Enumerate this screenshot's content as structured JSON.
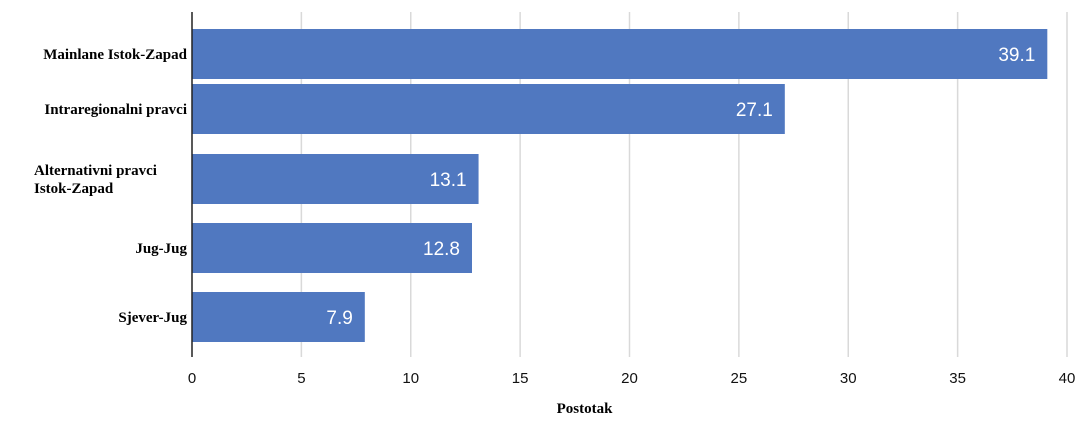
{
  "chart_data": {
    "type": "bar",
    "orientation": "horizontal",
    "categories": [
      [
        "Mainlane Istok-Zapad"
      ],
      [
        "Intraregionalni pravci"
      ],
      [
        "Alternativni pravci",
        "Istok-Zapad"
      ],
      [
        "Jug-Jug"
      ],
      [
        "Sjever-Jug"
      ]
    ],
    "values": [
      39.1,
      27.1,
      13.1,
      12.8,
      7.9
    ],
    "value_labels": [
      "39.1",
      "27.1",
      "13.1",
      "12.8",
      "7.9"
    ],
    "xlabel": "Postotak",
    "xlim": [
      0,
      40
    ],
    "xticks": [
      "0",
      "5",
      "10",
      "15",
      "20",
      "25",
      "30",
      "35",
      "40"
    ],
    "grid": "vertical",
    "colors": {
      "bar": "#5078c0",
      "grid": "#d9d9d9",
      "axis": "#222222"
    }
  }
}
